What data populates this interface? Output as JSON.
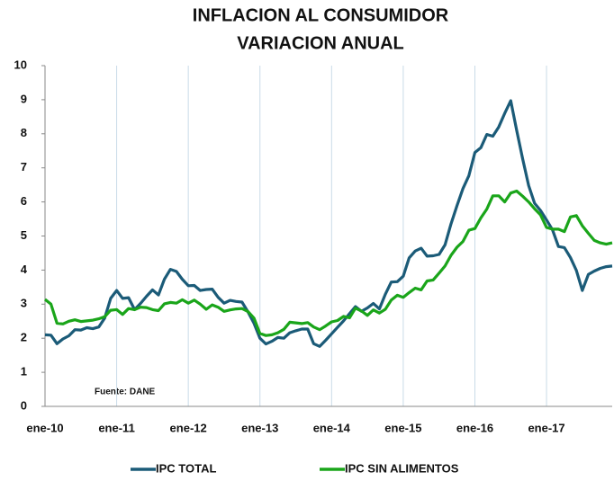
{
  "chart_data": {
    "type": "line",
    "title": [
      "INFLACION AL CONSUMIDOR",
      "VARIACION ANUAL"
    ],
    "annotation": "Fuente: DANE",
    "categories": [
      "ene-10",
      null,
      null,
      null,
      null,
      null,
      null,
      null,
      null,
      null,
      null,
      null,
      "ene-11",
      null,
      null,
      null,
      null,
      null,
      null,
      null,
      null,
      null,
      null,
      null,
      "ene-12",
      null,
      null,
      null,
      null,
      null,
      null,
      null,
      null,
      null,
      null,
      null,
      "ene-13",
      null,
      null,
      null,
      null,
      null,
      null,
      null,
      null,
      null,
      null,
      null,
      "ene-14",
      null,
      null,
      null,
      null,
      null,
      null,
      null,
      null,
      null,
      null,
      null,
      "ene-15",
      null,
      null,
      null,
      null,
      null,
      null,
      null,
      null,
      null,
      null,
      null,
      "ene-16",
      null,
      null,
      null,
      null,
      null,
      null,
      null,
      null,
      null,
      null,
      null,
      "ene-17",
      null,
      null,
      null,
      null,
      null,
      null,
      null,
      null,
      null,
      null,
      null
    ],
    "series": [
      {
        "name": "IPC TOTAL",
        "color": "#1b5b78",
        "values": [
          2.1,
          2.09,
          1.84,
          1.98,
          2.07,
          2.25,
          2.24,
          2.31,
          2.28,
          2.33,
          2.59,
          3.17,
          3.4,
          3.17,
          3.19,
          2.84,
          3.02,
          3.23,
          3.42,
          3.27,
          3.73,
          4.02,
          3.96,
          3.73,
          3.54,
          3.55,
          3.4,
          3.43,
          3.44,
          3.2,
          3.03,
          3.11,
          3.08,
          3.06,
          2.77,
          2.44,
          2.0,
          1.83,
          1.91,
          2.02,
          2.0,
          2.16,
          2.22,
          2.27,
          2.27,
          1.84,
          1.76,
          1.94,
          2.13,
          2.32,
          2.51,
          2.72,
          2.93,
          2.79,
          2.89,
          3.02,
          2.86,
          3.29,
          3.65,
          3.66,
          3.82,
          4.36,
          4.56,
          4.64,
          4.41,
          4.42,
          4.46,
          4.74,
          5.35,
          5.89,
          6.39,
          6.77,
          7.45,
          7.59,
          7.98,
          7.93,
          8.2,
          8.6,
          8.97,
          8.1,
          7.27,
          6.48,
          5.96,
          5.75,
          5.47,
          5.18,
          4.69,
          4.66,
          4.37,
          3.99,
          3.4,
          3.87,
          3.97,
          4.05,
          4.1,
          4.12
        ]
      },
      {
        "name": "IPC SIN ALIMENTOS",
        "color": "#1aa51a",
        "values": [
          3.14,
          3.0,
          2.44,
          2.42,
          2.5,
          2.54,
          2.49,
          2.51,
          2.53,
          2.57,
          2.63,
          2.82,
          2.84,
          2.7,
          2.87,
          2.84,
          2.91,
          2.9,
          2.84,
          2.81,
          3.01,
          3.05,
          3.03,
          3.13,
          3.03,
          3.12,
          3.0,
          2.85,
          2.98,
          2.91,
          2.79,
          2.83,
          2.86,
          2.87,
          2.78,
          2.59,
          2.14,
          2.08,
          2.1,
          2.16,
          2.26,
          2.47,
          2.45,
          2.43,
          2.46,
          2.33,
          2.25,
          2.36,
          2.48,
          2.52,
          2.64,
          2.6,
          2.88,
          2.8,
          2.67,
          2.83,
          2.74,
          2.85,
          3.12,
          3.26,
          3.2,
          3.34,
          3.47,
          3.42,
          3.68,
          3.71,
          3.91,
          4.12,
          4.43,
          4.67,
          4.84,
          5.17,
          5.22,
          5.53,
          5.79,
          6.18,
          6.18,
          6.0,
          6.26,
          6.32,
          6.17,
          6.0,
          5.8,
          5.62,
          5.25,
          5.2,
          5.2,
          5.13,
          5.56,
          5.6,
          5.3,
          5.08,
          4.87,
          4.8,
          4.76,
          4.8
        ]
      }
    ],
    "ylim": [
      0,
      10
    ],
    "yticks": [
      0,
      1,
      2,
      3,
      4,
      5,
      6,
      7,
      8,
      9,
      10
    ],
    "grid": "x",
    "legend": "bottom"
  }
}
